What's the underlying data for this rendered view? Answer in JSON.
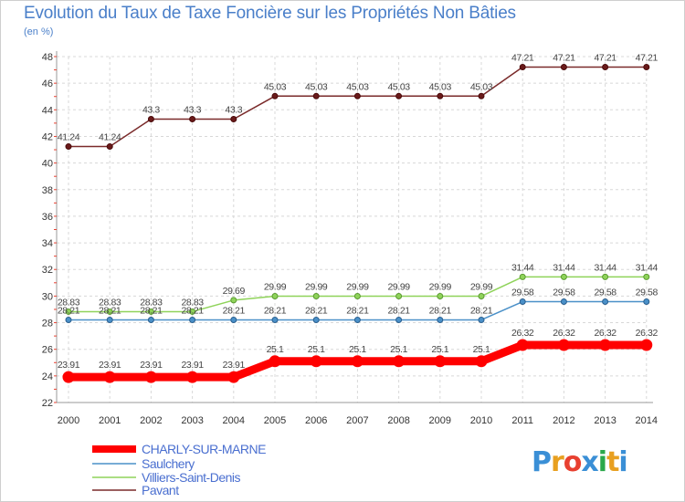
{
  "chart_data": {
    "type": "line",
    "title": "Evolution du Taux de Taxe Foncière sur les Propriétés Non Bâties",
    "ylabel": "(en %)",
    "xlabel": "",
    "ylim": [
      22,
      48
    ],
    "yticks": [
      22,
      24,
      26,
      28,
      30,
      32,
      34,
      36,
      38,
      40,
      42,
      44,
      46,
      48
    ],
    "categories": [
      "2000",
      "2001",
      "2002",
      "2003",
      "2004",
      "2005",
      "2006",
      "2007",
      "2008",
      "2009",
      "2010",
      "2011",
      "2012",
      "2013",
      "2014"
    ],
    "grid": true,
    "legend_position": "bottom-left",
    "series": [
      {
        "name": "CHARLY-SUR-MARNE",
        "color": "#ff0000",
        "values": [
          23.91,
          23.91,
          23.91,
          23.91,
          23.91,
          25.1,
          25.1,
          25.1,
          25.1,
          25.1,
          25.1,
          26.32,
          26.32,
          26.32,
          26.32
        ],
        "labels": [
          "23.91",
          "23.91",
          "23.91",
          "23.91",
          "23.91",
          "25.1",
          "25.1",
          "25.1",
          "25.1",
          "25.1",
          "25.1",
          "26.32",
          "26.32",
          "26.32",
          "26.32"
        ]
      },
      {
        "name": "Saulchery",
        "color": "#4a90c8",
        "values": [
          28.21,
          28.21,
          28.21,
          28.21,
          28.21,
          28.21,
          28.21,
          28.21,
          28.21,
          28.21,
          28.21,
          29.58,
          29.58,
          29.58,
          29.58
        ],
        "labels": [
          "28.21",
          "28.21",
          "28.21",
          "28.21",
          "28.21",
          "28.21",
          "28.21",
          "28.21",
          "28.21",
          "28.21",
          "28.21",
          "29.58",
          "29.58",
          "29.58",
          "29.58"
        ]
      },
      {
        "name": "Villiers-Saint-Denis",
        "color": "#8fd35a",
        "values": [
          28.83,
          28.83,
          28.83,
          28.83,
          29.69,
          29.99,
          29.99,
          29.99,
          29.99,
          29.99,
          29.99,
          31.44,
          31.44,
          31.44,
          31.44
        ],
        "labels": [
          "28.83",
          "28.83",
          "28.83",
          "28.83",
          "29.69",
          "29.99",
          "29.99",
          "29.99",
          "29.99",
          "29.99",
          "29.99",
          "31.44",
          "31.44",
          "31.44",
          "31.44"
        ]
      },
      {
        "name": "Pavant",
        "color": "#7a2a2a",
        "values": [
          41.24,
          41.24,
          43.3,
          43.3,
          43.3,
          45.03,
          45.03,
          45.03,
          45.03,
          45.03,
          45.03,
          47.21,
          47.21,
          47.21,
          47.21
        ],
        "labels": [
          "41.24",
          "41.24",
          "43.3",
          "43.3",
          "43.3",
          "45.03",
          "45.03",
          "45.03",
          "45.03",
          "45.03",
          "45.03",
          "47.21",
          "47.21",
          "47.21",
          "47.21"
        ]
      }
    ]
  },
  "logo": {
    "letters": [
      "P",
      "r",
      "o",
      "x",
      "i",
      "t",
      "i"
    ],
    "colors": [
      "#3a8fd6",
      "#e8a020",
      "#e84030",
      "#3a8fd6",
      "#2aa84a",
      "#e8a020",
      "#3a8fd6"
    ]
  }
}
